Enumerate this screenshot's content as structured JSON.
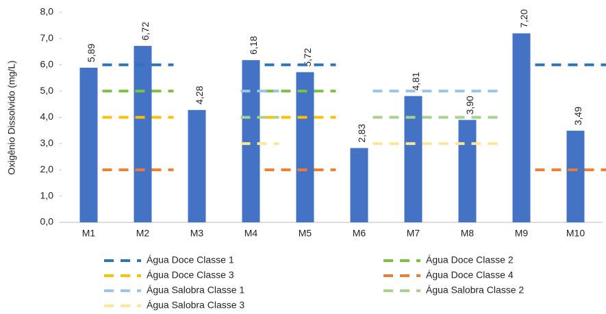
{
  "chart_data": {
    "type": "bar",
    "y_label": "Oxigênio Dissolvido (mg/L)",
    "categories": [
      "M1",
      "M2",
      "M3",
      "M4",
      "M5",
      "M6",
      "M7",
      "M8",
      "M9",
      "M10"
    ],
    "values": [
      5.89,
      6.72,
      4.28,
      6.18,
      5.72,
      2.83,
      4.81,
      3.9,
      7.2,
      3.49
    ],
    "value_labels": [
      "5,89",
      "6,72",
      "4,28",
      "6,18",
      "5,72",
      "2,83",
      "4,81",
      "3,90",
      "7,20",
      "3,49"
    ],
    "color": "#4472c4",
    "ylim": [
      0,
      8
    ],
    "yticks": [
      {
        "value": 0,
        "label": "0,0"
      },
      {
        "value": 1,
        "label": "1,0"
      },
      {
        "value": 2,
        "label": "2,0"
      },
      {
        "value": 3,
        "label": "3,0"
      },
      {
        "value": 4,
        "label": "4,0"
      },
      {
        "value": 5,
        "label": "5,0"
      },
      {
        "value": 6,
        "label": "6,0"
      },
      {
        "value": 7,
        "label": "7,0"
      },
      {
        "value": 8,
        "label": "8,0"
      }
    ],
    "reference_series": [
      {
        "name": "Água Doce Classe 1",
        "color": "#2e75b6",
        "values": [
          6,
          6,
          null,
          6,
          6,
          null,
          null,
          null,
          6,
          6
        ]
      },
      {
        "name": "Água Doce Classe 2",
        "color": "#7cc242",
        "values": [
          5,
          5,
          null,
          5,
          5,
          null,
          null,
          null,
          null,
          null
        ]
      },
      {
        "name": "Água Doce Classe 3",
        "color": "#ffc000",
        "values": [
          4,
          4,
          null,
          4,
          4,
          null,
          null,
          null,
          null,
          null
        ]
      },
      {
        "name": "Água Doce Classe 4",
        "color": "#ed7d31",
        "values": [
          2,
          2,
          null,
          2,
          2,
          null,
          null,
          null,
          2,
          2
        ]
      },
      {
        "name": "Água Salobra Classe 1",
        "color": "#9dc3e6",
        "values": [
          null,
          null,
          5,
          null,
          null,
          5,
          5,
          5,
          null,
          null
        ]
      },
      {
        "name": "Água Salobra Classe 2",
        "color": "#a9d18e",
        "values": [
          null,
          null,
          4,
          null,
          null,
          4,
          4,
          4,
          null,
          null
        ]
      },
      {
        "name": "Água Salobra Classe 3",
        "color": "#ffe699",
        "values": [
          null,
          null,
          3,
          null,
          null,
          3,
          3,
          3,
          null,
          null
        ]
      }
    ],
    "legend": "bottom"
  }
}
